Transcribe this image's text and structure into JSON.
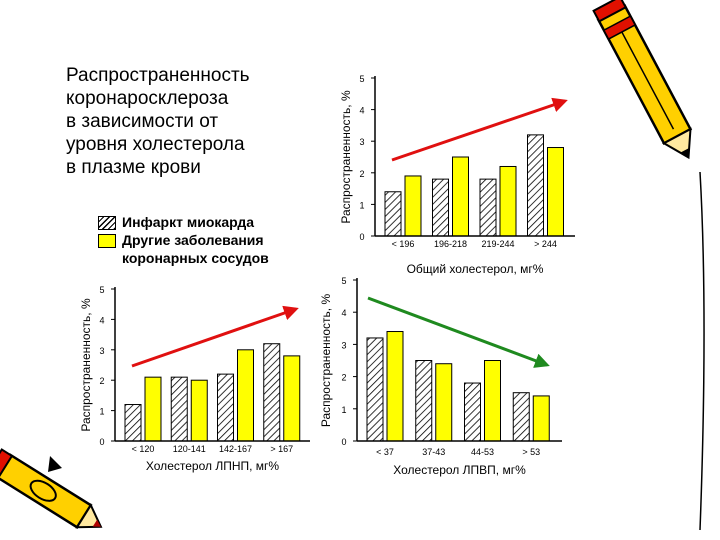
{
  "title_lines": [
    "Распространенность",
    "коронаросклероза",
    "в зависимости от",
    "уровня холестерола",
    "в плазме крови"
  ],
  "legend": {
    "hatched_label": "Инфаркт миокарда",
    "solid_label_lines": [
      "Другие заболевания",
      "коронарных сосудов"
    ]
  },
  "colors": {
    "solid_series": "#ffff00",
    "up_arrow": "#e01010",
    "down_arrow": "#1f8a1f",
    "pencil_body": "#ffd000",
    "pencil_stripe": "#e01000",
    "pencil_tip": "#000000"
  },
  "decorations": [
    "pencil-top-right",
    "pencil-bottom-left",
    "curved-border-right"
  ],
  "chart_data": [
    {
      "type": "bar",
      "xlabel": "Общий холестерол, мг%",
      "ylabel": "Распространенность, %",
      "ylim": [
        0,
        5
      ],
      "yticks": [
        0,
        1,
        2,
        3,
        4,
        5
      ],
      "categories": [
        "< 196",
        "196-218",
        "219-244",
        "> 244"
      ],
      "series": [
        {
          "style": "hatched",
          "values": [
            1.4,
            1.8,
            1.8,
            3.2
          ]
        },
        {
          "style": "solid",
          "values": [
            1.9,
            2.5,
            2.2,
            2.8
          ]
        }
      ],
      "trend": "up"
    },
    {
      "type": "bar",
      "xlabel": "Холестерол ЛПНП, мг%",
      "ylabel": "Распространенность, %",
      "ylim": [
        0,
        5
      ],
      "yticks": [
        0,
        1,
        2,
        3,
        4,
        5
      ],
      "categories": [
        "< 120",
        "120-141",
        "142-167",
        "> 167"
      ],
      "series": [
        {
          "style": "hatched",
          "values": [
            1.2,
            2.1,
            2.2,
            3.2
          ]
        },
        {
          "style": "solid",
          "values": [
            2.1,
            2.0,
            3.0,
            2.8
          ]
        }
      ],
      "trend": "up"
    },
    {
      "type": "bar",
      "xlabel": "Холестерол ЛПВП, мг%",
      "ylabel": "Распространенность, %",
      "ylim": [
        0,
        5
      ],
      "yticks": [
        0,
        1,
        2,
        3,
        4,
        5
      ],
      "categories": [
        "< 37",
        "37-43",
        "44-53",
        "> 53"
      ],
      "series": [
        {
          "style": "hatched",
          "values": [
            3.2,
            2.5,
            1.8,
            1.5
          ]
        },
        {
          "style": "solid",
          "values": [
            3.4,
            2.4,
            2.5,
            1.4
          ]
        }
      ],
      "trend": "down"
    }
  ]
}
